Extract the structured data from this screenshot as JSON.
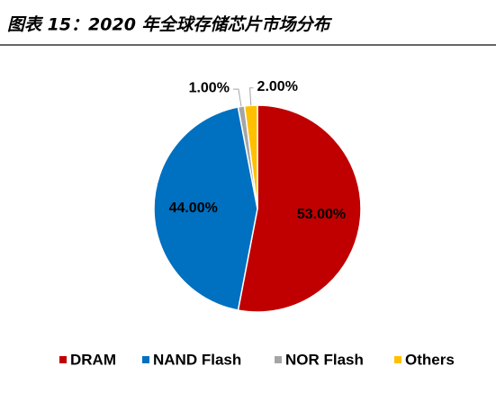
{
  "chart_data": {
    "type": "pie",
    "title": "图表 15：2020 年全球存储芯片市场分布",
    "categories": [
      "DRAM",
      "NAND Flash",
      "NOR Flash",
      "Others"
    ],
    "values": [
      53,
      44,
      1,
      2
    ],
    "value_labels": [
      "53.00%",
      "44.00%",
      "1.00%",
      "2.00%"
    ],
    "colors": [
      "#c00000",
      "#0070c0",
      "#a5a5a5",
      "#ffc000"
    ],
    "legend": "bottom"
  }
}
